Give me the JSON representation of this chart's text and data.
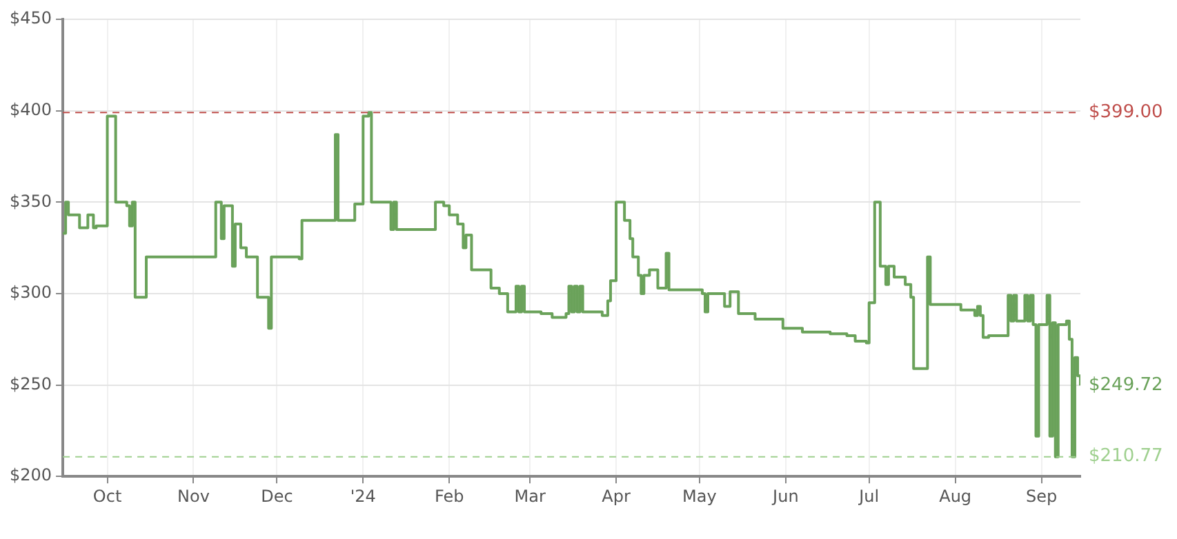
{
  "chart_data": {
    "type": "step",
    "x": [
      "2023-09-15",
      "2023-09-16",
      "2023-09-17",
      "2023-09-21",
      "2023-09-24",
      "2023-09-26",
      "2023-09-27",
      "2023-10-01",
      "2023-10-04",
      "2023-10-08",
      "2023-10-09",
      "2023-10-10",
      "2023-10-11",
      "2023-10-15",
      "2023-11-09",
      "2023-11-11",
      "2023-11-12",
      "2023-11-15",
      "2023-11-16",
      "2023-11-18",
      "2023-11-20",
      "2023-11-24",
      "2023-11-28",
      "2023-11-29",
      "2023-12-09",
      "2023-12-10",
      "2023-12-22",
      "2023-12-23",
      "2023-12-29",
      "2024-01-01",
      "2024-01-03",
      "2024-01-04",
      "2024-01-11",
      "2024-01-12",
      "2024-01-13",
      "2024-01-27",
      "2024-01-30",
      "2024-02-01",
      "2024-02-04",
      "2024-02-06",
      "2024-02-07",
      "2024-02-09",
      "2024-02-16",
      "2024-02-19",
      "2024-02-22",
      "2024-02-25",
      "2024-02-26",
      "2024-02-27",
      "2024-02-28",
      "2024-03-05",
      "2024-03-09",
      "2024-03-14",
      "2024-03-15",
      "2024-03-16",
      "2024-03-17",
      "2024-03-18",
      "2024-03-19",
      "2024-03-20",
      "2024-03-27",
      "2024-03-29",
      "2024-03-30",
      "2024-04-01",
      "2024-04-04",
      "2024-04-06",
      "2024-04-07",
      "2024-04-09",
      "2024-04-10",
      "2024-04-11",
      "2024-04-13",
      "2024-04-16",
      "2024-04-19",
      "2024-04-20",
      "2024-05-02",
      "2024-05-03",
      "2024-05-04",
      "2024-05-10",
      "2024-05-12",
      "2024-05-15",
      "2024-05-21",
      "2024-05-31",
      "2024-06-07",
      "2024-06-17",
      "2024-06-23",
      "2024-06-26",
      "2024-06-30",
      "2024-07-01",
      "2024-07-03",
      "2024-07-05",
      "2024-07-07",
      "2024-07-08",
      "2024-07-10",
      "2024-07-14",
      "2024-07-16",
      "2024-07-17",
      "2024-07-22",
      "2024-07-23",
      "2024-07-31",
      "2024-08-03",
      "2024-08-08",
      "2024-08-09",
      "2024-08-10",
      "2024-08-11",
      "2024-08-13",
      "2024-08-18",
      "2024-08-20",
      "2024-08-21",
      "2024-08-22",
      "2024-08-23",
      "2024-08-25",
      "2024-08-26",
      "2024-08-27",
      "2024-08-28",
      "2024-08-29",
      "2024-08-30",
      "2024-08-31",
      "2024-09-03",
      "2024-09-04",
      "2024-09-05",
      "2024-09-06",
      "2024-09-07",
      "2024-09-10",
      "2024-09-11",
      "2024-09-12",
      "2024-09-13",
      "2024-09-14",
      "2024-09-15"
    ],
    "series": [
      {
        "color": "#6aa25a",
        "values": [
          333,
          350,
          343,
          336,
          343,
          336,
          337,
          397,
          350,
          348,
          337,
          350,
          298,
          320,
          350,
          330,
          348,
          315,
          338,
          325,
          320,
          298,
          281,
          320,
          319,
          340,
          387,
          340,
          349,
          397,
          399,
          350,
          335,
          350,
          335,
          350,
          348,
          343,
          338,
          325,
          332,
          313,
          303,
          300,
          290,
          304,
          290,
          304,
          290,
          289,
          287,
          289,
          304,
          290,
          304,
          290,
          304,
          290,
          288,
          296,
          307,
          350,
          340,
          330,
          320,
          310,
          300,
          310,
          313,
          303,
          322,
          302,
          300,
          290,
          300,
          293,
          301,
          289,
          286,
          281,
          279,
          278,
          277,
          274,
          273,
          295,
          350,
          315,
          305,
          315,
          309,
          305,
          298,
          259,
          320,
          294,
          294,
          291,
          288,
          293,
          288,
          276,
          277,
          277,
          299,
          285,
          299,
          285,
          285,
          299,
          285,
          299,
          283,
          222,
          283,
          299,
          222,
          284,
          210.77,
          283,
          285,
          275,
          210.77,
          265,
          255,
          249.72
        ]
      }
    ],
    "xlim": [
      "2023-09-15",
      "2024-09-15"
    ],
    "xticks": [
      {
        "value": "2023-10-01",
        "label": "Oct"
      },
      {
        "value": "2023-11-01",
        "label": "Nov"
      },
      {
        "value": "2023-12-01",
        "label": "Dec"
      },
      {
        "value": "2024-01-01",
        "label": "'24"
      },
      {
        "value": "2024-02-01",
        "label": "Feb"
      },
      {
        "value": "2024-03-01",
        "label": "Mar"
      },
      {
        "value": "2024-04-01",
        "label": "Apr"
      },
      {
        "value": "2024-05-01",
        "label": "May"
      },
      {
        "value": "2024-06-01",
        "label": "Jun"
      },
      {
        "value": "2024-07-01",
        "label": "Jul"
      },
      {
        "value": "2024-08-01",
        "label": "Aug"
      },
      {
        "value": "2024-09-01",
        "label": "Sep"
      }
    ],
    "ylim": [
      200,
      450
    ],
    "yticks": [
      {
        "value": 200,
        "label": "$200"
      },
      {
        "value": 250,
        "label": "$250"
      },
      {
        "value": 300,
        "label": "$300"
      },
      {
        "value": 350,
        "label": "$350"
      },
      {
        "value": 400,
        "label": "$400"
      },
      {
        "value": 450,
        "label": "$450"
      }
    ],
    "ref_lines": [
      {
        "axis": "y",
        "value": 399,
        "label": "$399.00",
        "color": "#c0504d",
        "line_style": "dashed"
      },
      {
        "axis": "y",
        "value": 210.77,
        "label": "$210.77",
        "color": "#9fd08f",
        "line_style": "dashed"
      }
    ],
    "annotations": [
      {
        "text": "$249.72",
        "x": "2024-09-15",
        "y": 249.72
      }
    ],
    "grid": true,
    "legend": false,
    "marker": "none",
    "line_style": "solid"
  }
}
